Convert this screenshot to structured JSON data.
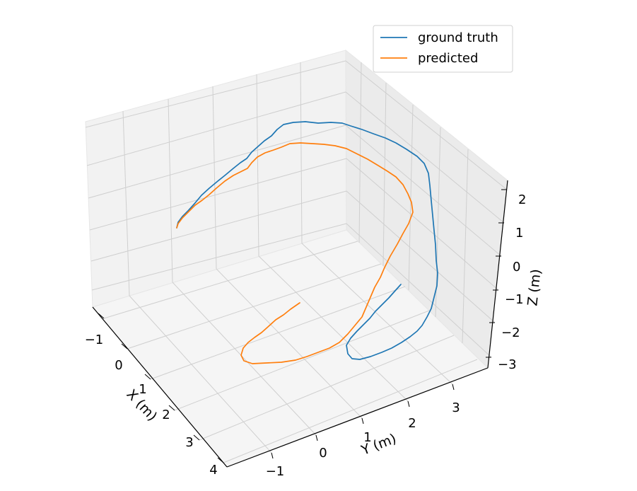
{
  "chart_data": {
    "type": "line",
    "projection": "3d",
    "xlabel": "X (m)",
    "ylabel": "Y (m)",
    "zlabel": "Z (m)",
    "x_ticks": [
      "−1",
      "0",
      "1",
      "2",
      "3",
      "4"
    ],
    "y_ticks": [
      "−1",
      "0",
      "1",
      "2",
      "3"
    ],
    "z_ticks": [
      "2",
      "1",
      "0",
      "−1",
      "−2",
      "−3"
    ],
    "grid": true,
    "legend_position": "top-right",
    "series": [
      {
        "name": "ground truth",
        "color": "#1f77b4",
        "points": [
          [
            250,
            322
          ],
          [
            252,
            314
          ],
          [
            258,
            306
          ],
          [
            266,
            298
          ],
          [
            275,
            288
          ],
          [
            285,
            276
          ],
          [
            296,
            266
          ],
          [
            308,
            256
          ],
          [
            318,
            248
          ],
          [
            330,
            238
          ],
          [
            340,
            230
          ],
          [
            349,
            224
          ],
          [
            356,
            215
          ],
          [
            365,
            207
          ],
          [
            374,
            199
          ],
          [
            384,
            192
          ],
          [
            392,
            183
          ],
          [
            401,
            176
          ],
          [
            415,
            173
          ],
          [
            432,
            172
          ],
          [
            450,
            174
          ],
          [
            468,
            173
          ],
          [
            484,
            174
          ],
          [
            496,
            178
          ],
          [
            512,
            183
          ],
          [
            528,
            189
          ],
          [
            545,
            195
          ],
          [
            560,
            202
          ],
          [
            575,
            211
          ],
          [
            590,
            221
          ],
          [
            600,
            231
          ],
          [
            606,
            245
          ],
          [
            608,
            262
          ],
          [
            610,
            284
          ],
          [
            612,
            305
          ],
          [
            614,
            326
          ],
          [
            616,
            346
          ],
          [
            617,
            368
          ],
          [
            619,
            386
          ],
          [
            618,
            404
          ],
          [
            614,
            420
          ],
          [
            610,
            436
          ],
          [
            604,
            448
          ],
          [
            597,
            460
          ],
          [
            590,
            468
          ],
          [
            580,
            476
          ],
          [
            568,
            484
          ],
          [
            554,
            492
          ],
          [
            540,
            498
          ],
          [
            524,
            504
          ],
          [
            509,
            508
          ],
          [
            498,
            507
          ],
          [
            492,
            500
          ],
          [
            490,
            488
          ],
          [
            496,
            478
          ],
          [
            505,
            468
          ],
          [
            514,
            459
          ],
          [
            523,
            450
          ],
          [
            531,
            440
          ],
          [
            540,
            431
          ],
          [
            550,
            421
          ],
          [
            558,
            412
          ],
          [
            567,
            402
          ]
        ]
      },
      {
        "name": "predicted",
        "color": "#ff7f0e",
        "points": [
          [
            250,
            322
          ],
          [
            252,
            316
          ],
          [
            258,
            308
          ],
          [
            266,
            300
          ],
          [
            276,
            290
          ],
          [
            286,
            283
          ],
          [
            296,
            275
          ],
          [
            306,
            266
          ],
          [
            318,
            256
          ],
          [
            330,
            248
          ],
          [
            342,
            242
          ],
          [
            350,
            238
          ],
          [
            356,
            230
          ],
          [
            364,
            222
          ],
          [
            375,
            216
          ],
          [
            387,
            212
          ],
          [
            398,
            208
          ],
          [
            410,
            203
          ],
          [
            425,
            202
          ],
          [
            442,
            203
          ],
          [
            458,
            204
          ],
          [
            474,
            206
          ],
          [
            490,
            210
          ],
          [
            506,
            218
          ],
          [
            520,
            225
          ],
          [
            535,
            234
          ],
          [
            548,
            242
          ],
          [
            560,
            250
          ],
          [
            570,
            261
          ],
          [
            577,
            274
          ],
          [
            582,
            286
          ],
          [
            584,
            300
          ],
          [
            578,
            316
          ],
          [
            570,
            330
          ],
          [
            562,
            345
          ],
          [
            552,
            362
          ],
          [
            544,
            378
          ],
          [
            538,
            392
          ],
          [
            530,
            406
          ],
          [
            524,
            420
          ],
          [
            518,
            434
          ],
          [
            512,
            448
          ],
          [
            502,
            460
          ],
          [
            492,
            472
          ],
          [
            480,
            484
          ],
          [
            466,
            492
          ],
          [
            450,
            498
          ],
          [
            434,
            504
          ],
          [
            418,
            509
          ],
          [
            398,
            512
          ],
          [
            377,
            513
          ],
          [
            357,
            514
          ],
          [
            345,
            510
          ],
          [
            341,
            502
          ],
          [
            344,
            492
          ],
          [
            351,
            484
          ],
          [
            360,
            477
          ],
          [
            370,
            470
          ],
          [
            379,
            462
          ],
          [
            390,
            452
          ],
          [
            401,
            445
          ],
          [
            411,
            437
          ],
          [
            424,
            428
          ]
        ]
      }
    ]
  }
}
